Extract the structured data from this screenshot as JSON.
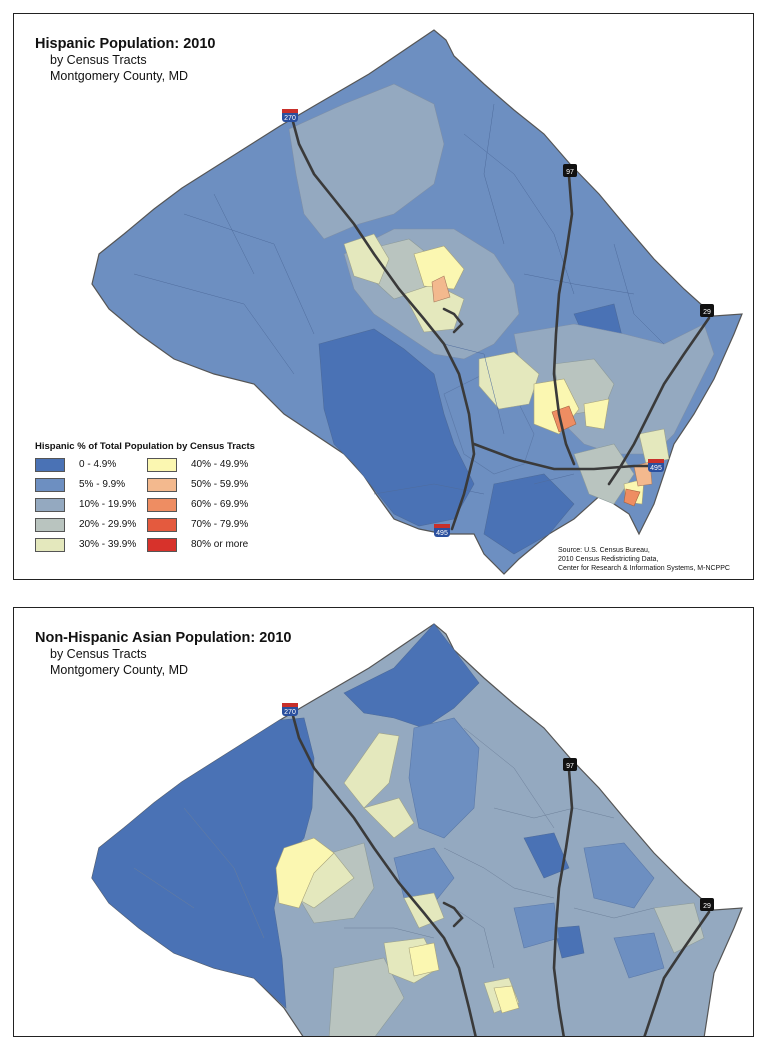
{
  "maps": [
    {
      "title": "Hispanic Population: 2010",
      "subtitle1": "by Census Tracts",
      "subtitle2": "Montgomery County, MD",
      "legend_title": "Hispanic % of Total Population by Census Tracts",
      "legend": [
        {
          "label": "0 - 4.9%",
          "color": "#4a72b5"
        },
        {
          "label": "5% - 9.9%",
          "color": "#6d8fc1"
        },
        {
          "label": "10% - 19.9%",
          "color": "#94a9c0"
        },
        {
          "label": "20% - 29.9%",
          "color": "#b9c4bf"
        },
        {
          "label": "30% - 39.9%",
          "color": "#e4e8bd"
        },
        {
          "label": "40% - 49.9%",
          "color": "#fbf7b1"
        },
        {
          "label": "50% - 59.9%",
          "color": "#f3b98e"
        },
        {
          "label": "60% - 69.9%",
          "color": "#ee8d62"
        },
        {
          "label": "70% - 79.9%",
          "color": "#e45a3e"
        },
        {
          "label": "80% or more",
          "color": "#d7322b"
        }
      ],
      "source": [
        "Source: U.S. Census Bureau,",
        "2010 Census Redistricting Data,",
        "Center for Research & Information Systems, M-NCPPC"
      ],
      "highway_labels": [
        "270",
        "97",
        "29",
        "495",
        "495"
      ]
    },
    {
      "title": "Non-Hispanic Asian Population: 2010",
      "subtitle1": "by Census Tracts",
      "subtitle2": "Montgomery County, MD",
      "highway_labels": [
        "270",
        "97",
        "29"
      ]
    }
  ],
  "colors": {
    "c0": "#4a72b5",
    "c1": "#6d8fc1",
    "c2": "#94a9c0",
    "c3": "#b9c4bf",
    "c4": "#e4e8bd",
    "c5": "#fbf7b1",
    "c6": "#f3b98e",
    "c7": "#ee8d62",
    "c8": "#e45a3e",
    "interstate": "#2a4f9e",
    "road": "#3a3a3a"
  }
}
